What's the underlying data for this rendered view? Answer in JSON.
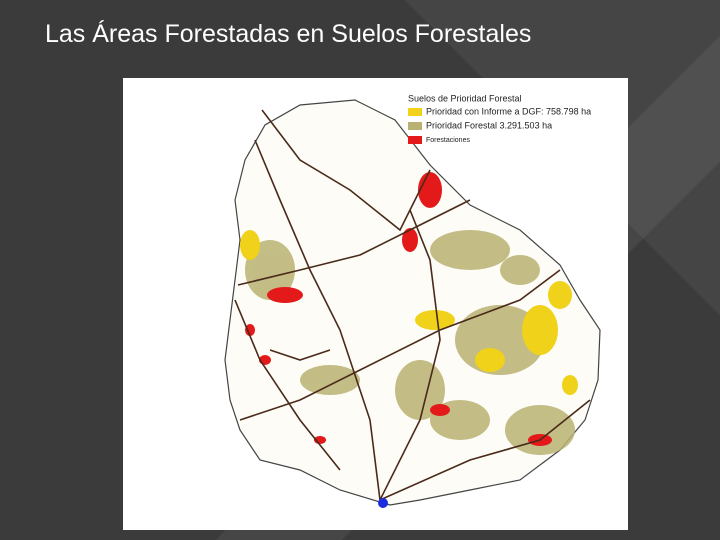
{
  "header": {
    "title": "Las Áreas Forestadas en Suelos Forestales"
  },
  "legend": {
    "title": "Suelos de Prioridad Forestal",
    "items": [
      "Prioridad con Informe a DGF: 758.798 ha",
      "Prioridad Forestal 3.291.503 ha",
      "Forestaciones"
    ]
  }
}
